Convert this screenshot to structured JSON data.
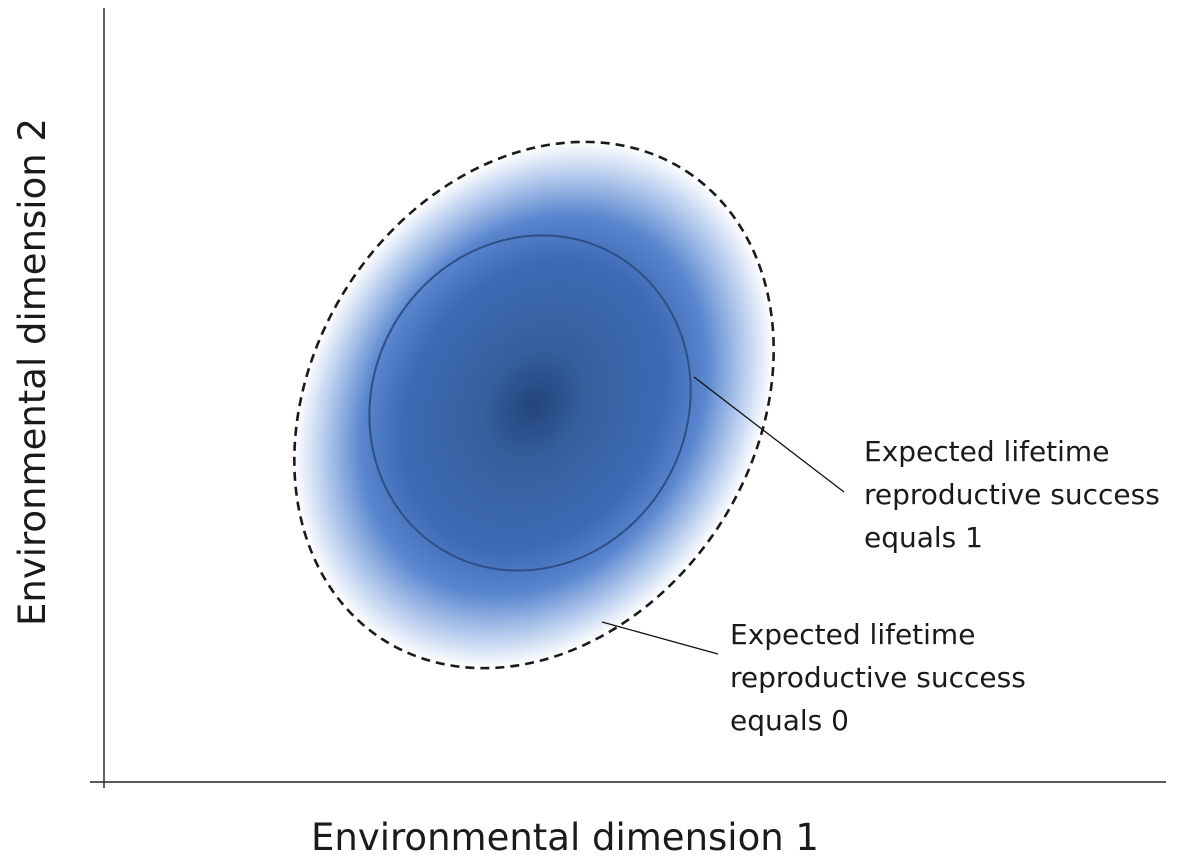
{
  "axes": {
    "x_title": "Environmental dimension 1",
    "y_title": "Environmental dimension 2"
  },
  "annotations": {
    "inner_contour": {
      "lines": [
        "Expected lifetime",
        "reproductive success",
        "equals 1"
      ]
    },
    "outer_contour": {
      "lines": [
        "Expected lifetime",
        "reproductive success",
        "equals 0"
      ]
    }
  },
  "colors": {
    "core": "#24447c",
    "mid": "#3f6cb8",
    "edge": "#ffffff",
    "inner_contour_stroke": "#2d4f86",
    "outer_contour_stroke": "#1a1a1a",
    "axis": "#222222"
  }
}
